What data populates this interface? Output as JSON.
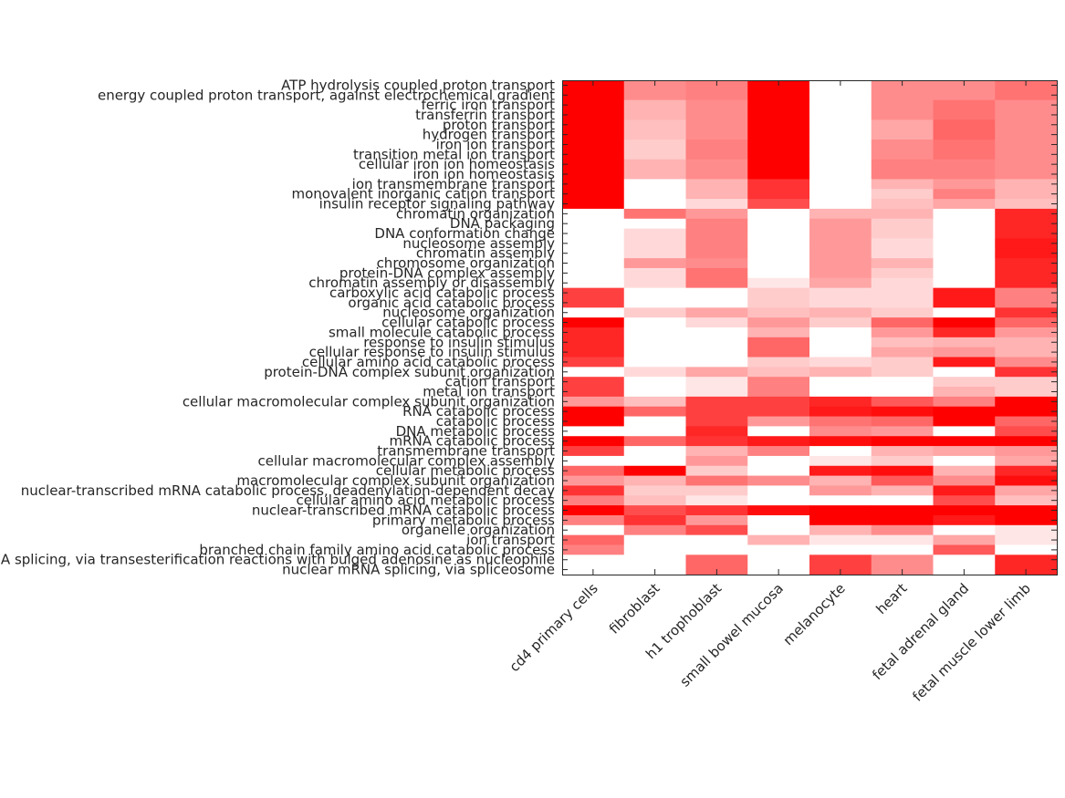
{
  "chart_data": {
    "type": "heatmap",
    "colormap": {
      "low": "#ffffff",
      "high": "#ff0000"
    },
    "range": [
      0,
      1
    ],
    "columns": [
      "cd4 primary cells",
      "fibroblast",
      "h1 trophoblast",
      "small bowel mucosa",
      "melanocyte",
      "heart",
      "fetal adrenal gland",
      "fetal muscle lower limb"
    ],
    "rows": [
      "ATP hydrolysis coupled proton transport",
      "energy coupled proton transport, against electrochemical gradient",
      "ferric iron transport",
      "transferrin transport",
      "proton transport",
      "hydrogen transport",
      "iron ion transport",
      "transition metal ion transport",
      "cellular iron ion homeostasis",
      "iron ion homeostasis",
      "ion transmembrane transport",
      "monovalent inorganic cation transport",
      "insulin receptor signaling pathway",
      "chromatin organization",
      "DNA packaging",
      "DNA conformation change",
      "nucleosome assembly",
      "chromatin assembly",
      "chromosome organization",
      "protein-DNA complex assembly",
      "chromatin assembly or disassembly",
      "carboxylic acid catabolic process",
      "organic acid catabolic process",
      "nucleosome organization",
      "cellular catabolic process",
      "small molecule catabolic process",
      "response to insulin stimulus",
      "cellular response to insulin stimulus",
      "cellular amino acid catabolic process",
      "protein-DNA complex subunit organization",
      "cation transport",
      "metal ion transport",
      "cellular macromolecular complex subunit organization",
      "RNA catabolic process",
      "catabolic process",
      "DNA metabolic process",
      "mRNA catabolic process",
      "transmembrane transport",
      "cellular macromolecular complex assembly",
      "cellular metabolic process",
      "macromolecular complex subunit organization",
      "nuclear-transcribed mRNA catabolic process, deadenylation-dependent decay",
      "cellular amino acid metabolic process",
      "nuclear-transcribed mRNA catabolic process",
      "primary metabolic process",
      "organelle organization",
      "ion transport",
      "branched chain family amino acid catabolic process",
      "mRNA splicing, via transesterification reactions with bulged adenosine as nucleophile",
      "nuclear mRNA splicing, via spliceosome"
    ],
    "values": [
      [
        1.0,
        0.45,
        0.5,
        1.0,
        0.0,
        0.45,
        0.45,
        0.55
      ],
      [
        1.0,
        0.45,
        0.5,
        1.0,
        0.0,
        0.45,
        0.45,
        0.55
      ],
      [
        1.0,
        0.3,
        0.45,
        1.0,
        0.0,
        0.45,
        0.55,
        0.45
      ],
      [
        1.0,
        0.3,
        0.45,
        1.0,
        0.0,
        0.45,
        0.55,
        0.45
      ],
      [
        1.0,
        0.25,
        0.45,
        1.0,
        0.0,
        0.35,
        0.6,
        0.45
      ],
      [
        1.0,
        0.25,
        0.45,
        1.0,
        0.0,
        0.35,
        0.6,
        0.45
      ],
      [
        1.0,
        0.2,
        0.5,
        1.0,
        0.0,
        0.45,
        0.55,
        0.45
      ],
      [
        1.0,
        0.2,
        0.5,
        1.0,
        0.0,
        0.45,
        0.55,
        0.45
      ],
      [
        1.0,
        0.3,
        0.45,
        1.0,
        0.0,
        0.5,
        0.5,
        0.45
      ],
      [
        1.0,
        0.3,
        0.45,
        1.0,
        0.0,
        0.5,
        0.5,
        0.45
      ],
      [
        1.0,
        0.0,
        0.3,
        0.8,
        0.0,
        0.3,
        0.4,
        0.3
      ],
      [
        1.0,
        0.0,
        0.3,
        0.8,
        0.0,
        0.2,
        0.5,
        0.3
      ],
      [
        1.0,
        0.0,
        0.15,
        0.7,
        0.0,
        0.25,
        0.35,
        0.25
      ],
      [
        0.0,
        0.55,
        0.4,
        0.0,
        0.3,
        0.3,
        0.0,
        0.85
      ],
      [
        0.0,
        0.0,
        0.5,
        0.0,
        0.4,
        0.2,
        0.0,
        0.85
      ],
      [
        0.0,
        0.15,
        0.5,
        0.0,
        0.4,
        0.2,
        0.0,
        0.85
      ],
      [
        0.0,
        0.15,
        0.5,
        0.0,
        0.4,
        0.15,
        0.0,
        0.9
      ],
      [
        0.0,
        0.15,
        0.5,
        0.0,
        0.4,
        0.15,
        0.0,
        0.9
      ],
      [
        0.0,
        0.4,
        0.45,
        0.0,
        0.4,
        0.3,
        0.0,
        0.85
      ],
      [
        0.0,
        0.15,
        0.55,
        0.0,
        0.4,
        0.2,
        0.0,
        0.85
      ],
      [
        0.0,
        0.15,
        0.55,
        0.1,
        0.35,
        0.15,
        0.0,
        0.85
      ],
      [
        0.75,
        0.0,
        0.0,
        0.2,
        0.15,
        0.15,
        0.9,
        0.5
      ],
      [
        0.75,
        0.0,
        0.0,
        0.2,
        0.15,
        0.15,
        0.9,
        0.5
      ],
      [
        0.0,
        0.2,
        0.35,
        0.25,
        0.3,
        0.2,
        0.0,
        0.8
      ],
      [
        1.0,
        0.0,
        0.15,
        0.4,
        0.2,
        0.6,
        1.0,
        0.6
      ],
      [
        0.85,
        0.0,
        0.0,
        0.3,
        0.0,
        0.4,
        0.85,
        0.4
      ],
      [
        0.85,
        0.0,
        0.0,
        0.6,
        0.0,
        0.25,
        0.3,
        0.3
      ],
      [
        0.85,
        0.0,
        0.0,
        0.6,
        0.0,
        0.35,
        0.4,
        0.3
      ],
      [
        0.75,
        0.0,
        0.0,
        0.2,
        0.15,
        0.2,
        0.9,
        0.45
      ],
      [
        0.0,
        0.15,
        0.35,
        0.25,
        0.3,
        0.2,
        0.0,
        0.8
      ],
      [
        0.75,
        0.0,
        0.1,
        0.5,
        0.0,
        0.0,
        0.2,
        0.2
      ],
      [
        0.75,
        0.0,
        0.1,
        0.5,
        0.0,
        0.0,
        0.3,
        0.2
      ],
      [
        0.4,
        0.25,
        0.75,
        0.75,
        0.85,
        0.65,
        0.5,
        1.0
      ],
      [
        1.0,
        0.6,
        0.75,
        0.75,
        0.9,
        0.95,
        1.0,
        1.0
      ],
      [
        1.0,
        0.0,
        0.75,
        0.4,
        0.55,
        0.6,
        1.0,
        0.6
      ],
      [
        0.0,
        0.0,
        0.85,
        0.0,
        0.45,
        0.4,
        0.0,
        0.7
      ],
      [
        1.0,
        0.6,
        0.8,
        0.9,
        0.95,
        1.0,
        1.0,
        1.0
      ],
      [
        0.75,
        0.0,
        0.3,
        0.5,
        0.0,
        0.3,
        0.35,
        0.4
      ],
      [
        0.0,
        0.0,
        0.4,
        0.0,
        0.1,
        0.2,
        0.0,
        0.35
      ],
      [
        0.6,
        1.0,
        0.2,
        0.0,
        0.9,
        0.95,
        0.3,
        0.85
      ],
      [
        0.4,
        0.3,
        0.55,
        0.45,
        0.3,
        0.65,
        0.45,
        0.95
      ],
      [
        0.8,
        0.2,
        0.2,
        0.0,
        0.4,
        0.3,
        0.9,
        0.35
      ],
      [
        0.5,
        0.25,
        0.1,
        0.0,
        0.0,
        0.0,
        0.7,
        0.25
      ],
      [
        1.0,
        0.7,
        0.8,
        0.95,
        1.0,
        1.0,
        1.0,
        1.0
      ],
      [
        0.5,
        0.8,
        0.4,
        0.0,
        1.0,
        1.0,
        0.9,
        1.0
      ],
      [
        0.0,
        0.5,
        0.7,
        0.0,
        0.3,
        0.45,
        0.0,
        0.1
      ],
      [
        0.6,
        0.0,
        0.0,
        0.3,
        0.1,
        0.1,
        0.35,
        0.1
      ],
      [
        0.5,
        0.0,
        0.0,
        0.0,
        0.0,
        0.0,
        0.65,
        0.0
      ],
      [
        0.0,
        0.0,
        0.6,
        0.0,
        0.75,
        0.45,
        0.0,
        0.85
      ],
      [
        0.0,
        0.0,
        0.6,
        0.0,
        0.75,
        0.45,
        0.0,
        0.85
      ]
    ],
    "title": "",
    "xlabel": "",
    "ylabel": "",
    "colorbar": false
  }
}
